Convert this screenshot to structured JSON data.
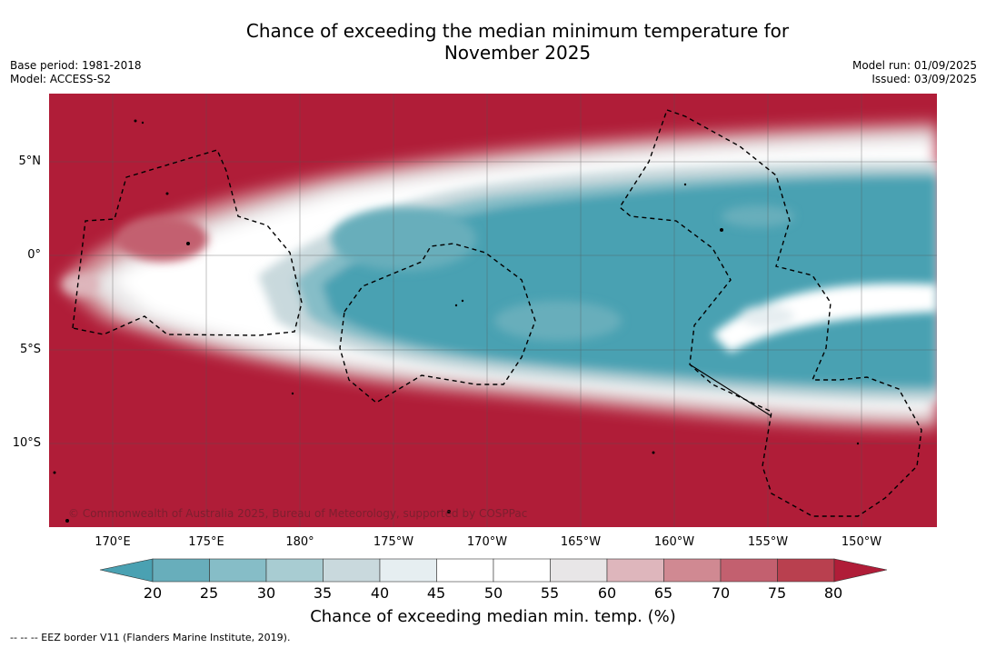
{
  "title_line1": "Chance of exceeding the median minimum temperature for",
  "title_line2": "November 2025",
  "meta_left": {
    "base_period": "Base period: 1981-2018",
    "model": "Model: ACCESS-S2"
  },
  "meta_right": {
    "model_run": "Model run: 01/09/2025",
    "issued": "Issued: 03/09/2025"
  },
  "map": {
    "lat_labels": [
      "5°N",
      "0°",
      "5°S",
      "10°S"
    ],
    "lon_labels": [
      "170°E",
      "175°E",
      "180°",
      "175°W",
      "170°W",
      "165°W",
      "160°W",
      "155°W",
      "150°W"
    ],
    "copyright": "© Commonwealth of Australia 2025, Bureau of Meteorology, supported by COSPPac"
  },
  "colorbar": {
    "ticks": [
      "20",
      "25",
      "30",
      "35",
      "40",
      "45",
      "50",
      "55",
      "60",
      "65",
      "70",
      "75",
      "80"
    ],
    "colors": [
      "#4aa1b2",
      "#68aebb",
      "#86bdc7",
      "#a8ccd2",
      "#c9d9dd",
      "#e6eef1",
      "#ffffff",
      "#ffffff",
      "#e8e6e7",
      "#deb6bc",
      "#d08992",
      "#c3606f",
      "#b9404f",
      "#b01d38"
    ],
    "title": "Chance of exceeding median min. temp. (%)"
  },
  "footer": "--  --  -- EEZ border V11 (Flanders Marine Institute, 2019)."
}
